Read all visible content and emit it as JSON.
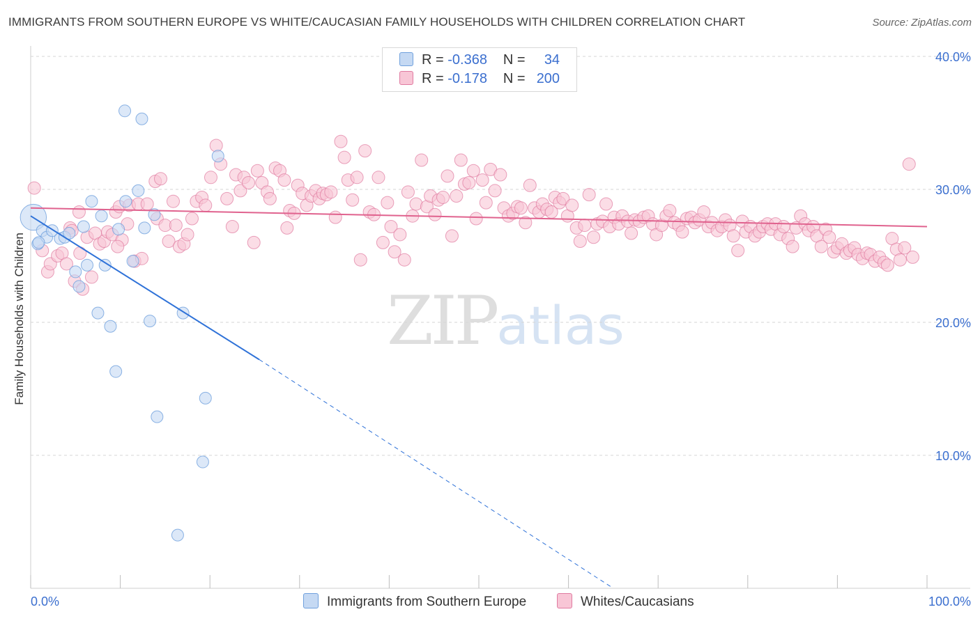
{
  "title": "IMMIGRANTS FROM SOUTHERN EUROPE VS WHITE/CAUCASIAN FAMILY HOUSEHOLDS WITH CHILDREN CORRELATION CHART",
  "source": "Source: ZipAtlas.com",
  "watermark": {
    "zip": "ZIP",
    "atlas": "atlas"
  },
  "legend": {
    "r_label": "R =",
    "n_label": "N =",
    "series1": {
      "r": "-0.368",
      "n": "34"
    },
    "series2": {
      "r": "-0.178",
      "n": "200"
    }
  },
  "colors": {
    "blue": "#6fa0dd",
    "blue_fill": "#c5d9f3",
    "pink": "#e07aa0",
    "pink_fill": "#f8c6d6",
    "blue_line": "#2f72d8",
    "pink_line": "#e0628e",
    "tick_text": "#3b6fcf"
  },
  "chart_data": {
    "type": "scatter",
    "title": "IMMIGRANTS FROM SOUTHERN EUROPE VS WHITE/CAUCASIAN FAMILY HOUSEHOLDS WITH CHILDREN CORRELATION CHART",
    "xlabel": "",
    "ylabel": "Family Households with Children",
    "xlim": [
      0,
      100
    ],
    "ylim": [
      0,
      42
    ],
    "x_tick_labels": [
      "0.0%",
      "100.0%"
    ],
    "y_ticks": [
      10,
      20,
      30,
      40
    ],
    "y_tick_labels": [
      "10.0%",
      "20.0%",
      "30.0%",
      "40.0%"
    ],
    "legend_position": "bottom",
    "series": [
      {
        "name": "Immigrants from Southern Europe",
        "color": "#6fa0dd",
        "r": -0.368,
        "n": 34,
        "trend": {
          "x0": 0,
          "y0": 28.0,
          "x1": 25.5,
          "y1": 17.2,
          "dash_to_x": 65,
          "dash_to_y": 0
        },
        "points": [
          [
            0.3,
            27.9,
            2.2
          ],
          [
            0.8,
            25.9,
            1
          ],
          [
            1.3,
            26.9,
            1
          ],
          [
            1.8,
            26.4,
            1
          ],
          [
            2.4,
            26.9,
            1
          ],
          [
            3.3,
            26.3,
            1
          ],
          [
            3.8,
            26.4,
            1
          ],
          [
            4.3,
            26.7,
            1
          ],
          [
            5.0,
            23.8,
            1
          ],
          [
            5.4,
            22.7,
            1
          ],
          [
            5.9,
            27.2,
            1
          ],
          [
            6.3,
            24.3,
            1
          ],
          [
            6.8,
            29.1,
            1
          ],
          [
            7.5,
            20.7,
            1
          ],
          [
            7.9,
            28.0,
            1
          ],
          [
            8.3,
            24.3,
            1
          ],
          [
            8.9,
            19.7,
            1
          ],
          [
            9.5,
            16.3,
            1
          ],
          [
            9.8,
            27.0,
            1
          ],
          [
            10.6,
            29.1,
            1
          ],
          [
            10.5,
            35.9,
            1
          ],
          [
            11.4,
            24.6,
            1
          ],
          [
            12.0,
            29.9,
            1
          ],
          [
            12.4,
            35.3,
            1
          ],
          [
            12.7,
            27.1,
            1
          ],
          [
            13.3,
            20.1,
            1
          ],
          [
            13.8,
            28.1,
            1
          ],
          [
            14.1,
            12.9,
            1
          ],
          [
            16.4,
            4.0,
            1
          ],
          [
            17.0,
            20.7,
            1
          ],
          [
            19.2,
            9.5,
            1
          ],
          [
            19.5,
            14.3,
            1
          ],
          [
            20.9,
            32.5,
            1
          ],
          [
            0.9,
            26.0,
            1
          ]
        ]
      },
      {
        "name": "Whites/Caucasians",
        "color": "#e07aa0",
        "r": -0.178,
        "n": 200,
        "trend": {
          "x0": 0,
          "y0": 28.6,
          "x1": 100,
          "y1": 27.2
        },
        "points": [
          [
            0.4,
            30.1
          ],
          [
            1.3,
            25.4
          ],
          [
            1.9,
            23.8
          ],
          [
            2.2,
            24.4
          ],
          [
            3.0,
            25.0
          ],
          [
            3.5,
            25.2
          ],
          [
            4.0,
            24.4
          ],
          [
            4.4,
            27.1
          ],
          [
            4.9,
            23.1
          ],
          [
            5.5,
            25.2
          ],
          [
            5.8,
            22.5
          ],
          [
            6.3,
            26.4
          ],
          [
            6.8,
            23.4
          ],
          [
            7.2,
            26.7
          ],
          [
            7.7,
            25.9
          ],
          [
            8.2,
            26.1
          ],
          [
            8.6,
            26.8
          ],
          [
            9.1,
            26.6
          ],
          [
            9.5,
            28.3
          ],
          [
            9.9,
            28.7
          ],
          [
            10.2,
            26.2
          ],
          [
            10.8,
            27.4
          ],
          [
            11.0,
            28.8
          ],
          [
            11.6,
            24.6
          ],
          [
            12.0,
            28.9
          ],
          [
            12.4,
            24.8
          ],
          [
            13.0,
            28.9
          ],
          [
            13.9,
            30.6
          ],
          [
            14.1,
            27.8
          ],
          [
            14.5,
            30.8
          ],
          [
            15.0,
            27.3
          ],
          [
            15.4,
            26.1
          ],
          [
            15.9,
            29.1
          ],
          [
            16.2,
            27.3
          ],
          [
            16.6,
            25.7
          ],
          [
            17.1,
            25.9
          ],
          [
            17.5,
            26.6
          ],
          [
            18.0,
            27.8
          ],
          [
            18.5,
            29.1
          ],
          [
            19.1,
            29.4
          ],
          [
            19.5,
            28.8
          ],
          [
            20.1,
            30.9
          ],
          [
            20.7,
            33.3
          ],
          [
            21.2,
            31.9
          ],
          [
            21.9,
            29.3
          ],
          [
            22.5,
            27.2
          ],
          [
            22.9,
            31.1
          ],
          [
            23.4,
            29.9
          ],
          [
            23.8,
            30.9
          ],
          [
            24.3,
            30.5
          ],
          [
            24.9,
            26.0
          ],
          [
            25.3,
            31.4
          ],
          [
            25.8,
            30.5
          ],
          [
            26.4,
            29.8
          ],
          [
            26.7,
            29.3
          ],
          [
            27.3,
            31.6
          ],
          [
            27.8,
            31.4
          ],
          [
            28.3,
            30.7
          ],
          [
            28.6,
            27.1
          ],
          [
            28.9,
            28.4
          ],
          [
            29.4,
            28.2
          ],
          [
            29.8,
            30.3
          ],
          [
            30.3,
            29.7
          ],
          [
            30.8,
            28.8
          ],
          [
            31.3,
            29.5
          ],
          [
            31.8,
            29.9
          ],
          [
            32.2,
            29.3
          ],
          [
            32.6,
            29.7
          ],
          [
            33.0,
            29.6
          ],
          [
            33.5,
            29.8
          ],
          [
            34.0,
            27.9
          ],
          [
            34.6,
            33.6
          ],
          [
            35.0,
            32.4
          ],
          [
            35.4,
            30.7
          ],
          [
            35.9,
            29.2
          ],
          [
            36.4,
            30.9
          ],
          [
            36.8,
            24.7
          ],
          [
            37.3,
            32.9
          ],
          [
            37.8,
            28.3
          ],
          [
            38.3,
            28.1
          ],
          [
            38.8,
            30.9
          ],
          [
            39.3,
            26.0
          ],
          [
            39.8,
            29.0
          ],
          [
            40.2,
            27.2
          ],
          [
            40.6,
            25.3
          ],
          [
            41.2,
            26.6
          ],
          [
            41.7,
            24.7
          ],
          [
            42.1,
            29.8
          ],
          [
            42.6,
            28.0
          ],
          [
            43.0,
            28.9
          ],
          [
            43.6,
            32.2
          ],
          [
            44.2,
            28.7
          ],
          [
            44.6,
            29.5
          ],
          [
            45.1,
            28.1
          ],
          [
            45.5,
            29.2
          ],
          [
            46.0,
            29.4
          ],
          [
            46.5,
            31.0
          ],
          [
            47.0,
            26.5
          ],
          [
            47.5,
            29.5
          ],
          [
            48.0,
            32.2
          ],
          [
            48.4,
            30.4
          ],
          [
            48.9,
            30.5
          ],
          [
            49.4,
            31.4
          ],
          [
            49.7,
            27.8
          ],
          [
            50.4,
            30.7
          ],
          [
            50.8,
            29.0
          ],
          [
            51.3,
            31.5
          ],
          [
            51.8,
            29.9
          ],
          [
            52.4,
            31.1
          ],
          [
            52.8,
            28.6
          ],
          [
            53.3,
            28.0
          ],
          [
            53.8,
            28.2
          ],
          [
            54.3,
            28.7
          ],
          [
            54.7,
            28.6
          ],
          [
            55.2,
            27.5
          ],
          [
            55.7,
            30.3
          ],
          [
            56.2,
            28.6
          ],
          [
            56.7,
            28.3
          ],
          [
            57.1,
            28.9
          ],
          [
            57.6,
            28.5
          ],
          [
            58.1,
            28.3
          ],
          [
            58.5,
            29.4
          ],
          [
            59.0,
            29.0
          ],
          [
            59.4,
            29.3
          ],
          [
            59.9,
            28.0
          ],
          [
            60.4,
            28.8
          ],
          [
            60.9,
            27.1
          ],
          [
            61.3,
            26.1
          ],
          [
            61.8,
            27.3
          ],
          [
            62.3,
            29.6
          ],
          [
            62.8,
            26.4
          ],
          [
            63.2,
            27.4
          ],
          [
            63.8,
            27.6
          ],
          [
            64.2,
            28.9
          ],
          [
            64.6,
            27.2
          ],
          [
            65.1,
            27.9
          ],
          [
            65.6,
            27.4
          ],
          [
            66.0,
            28.0
          ],
          [
            66.6,
            27.6
          ],
          [
            67.0,
            26.7
          ],
          [
            67.4,
            27.7
          ],
          [
            67.9,
            27.6
          ],
          [
            68.4,
            27.9
          ],
          [
            68.9,
            28.0
          ],
          [
            69.4,
            27.4
          ],
          [
            69.8,
            26.6
          ],
          [
            70.4,
            27.3
          ],
          [
            70.9,
            28.0
          ],
          [
            71.3,
            28.4
          ],
          [
            71.8,
            27.5
          ],
          [
            72.3,
            27.3
          ],
          [
            72.7,
            26.8
          ],
          [
            73.2,
            27.8
          ],
          [
            73.7,
            27.9
          ],
          [
            74.1,
            27.5
          ],
          [
            74.6,
            27.7
          ],
          [
            75.1,
            28.3
          ],
          [
            75.6,
            27.2
          ],
          [
            76.0,
            27.5
          ],
          [
            76.6,
            26.9
          ],
          [
            77.1,
            27.2
          ],
          [
            77.5,
            27.7
          ],
          [
            78.0,
            27.3
          ],
          [
            78.4,
            26.5
          ],
          [
            78.9,
            25.4
          ],
          [
            79.4,
            27.6
          ],
          [
            79.8,
            26.8
          ],
          [
            80.3,
            27.2
          ],
          [
            80.8,
            26.5
          ],
          [
            81.3,
            26.8
          ],
          [
            81.7,
            27.2
          ],
          [
            82.2,
            27.4
          ],
          [
            82.6,
            27.0
          ],
          [
            83.1,
            27.4
          ],
          [
            83.6,
            26.6
          ],
          [
            84.0,
            27.2
          ],
          [
            84.5,
            26.3
          ],
          [
            85.0,
            25.7
          ],
          [
            85.4,
            27.1
          ],
          [
            85.9,
            28.0
          ],
          [
            86.4,
            27.4
          ],
          [
            86.8,
            26.9
          ],
          [
            87.3,
            27.2
          ],
          [
            87.7,
            26.5
          ],
          [
            88.2,
            25.7
          ],
          [
            88.7,
            27.0
          ],
          [
            89.1,
            26.4
          ],
          [
            89.6,
            25.3
          ],
          [
            90.0,
            25.6
          ],
          [
            90.5,
            25.9
          ],
          [
            91.0,
            25.2
          ],
          [
            91.4,
            25.4
          ],
          [
            91.9,
            25.6
          ],
          [
            92.3,
            25.1
          ],
          [
            92.8,
            24.8
          ],
          [
            93.3,
            25.2
          ],
          [
            93.7,
            25.1
          ],
          [
            94.2,
            24.6
          ],
          [
            94.7,
            24.9
          ],
          [
            95.2,
            24.5
          ],
          [
            95.6,
            24.3
          ],
          [
            96.1,
            26.3
          ],
          [
            96.6,
            25.5
          ],
          [
            97.0,
            24.7
          ],
          [
            97.5,
            25.6
          ],
          [
            98.0,
            31.9
          ],
          [
            98.4,
            24.9
          ],
          [
            5.4,
            28.3
          ],
          [
            9.7,
            25.7
          ],
          [
            4.6,
            26.9
          ]
        ]
      }
    ]
  }
}
